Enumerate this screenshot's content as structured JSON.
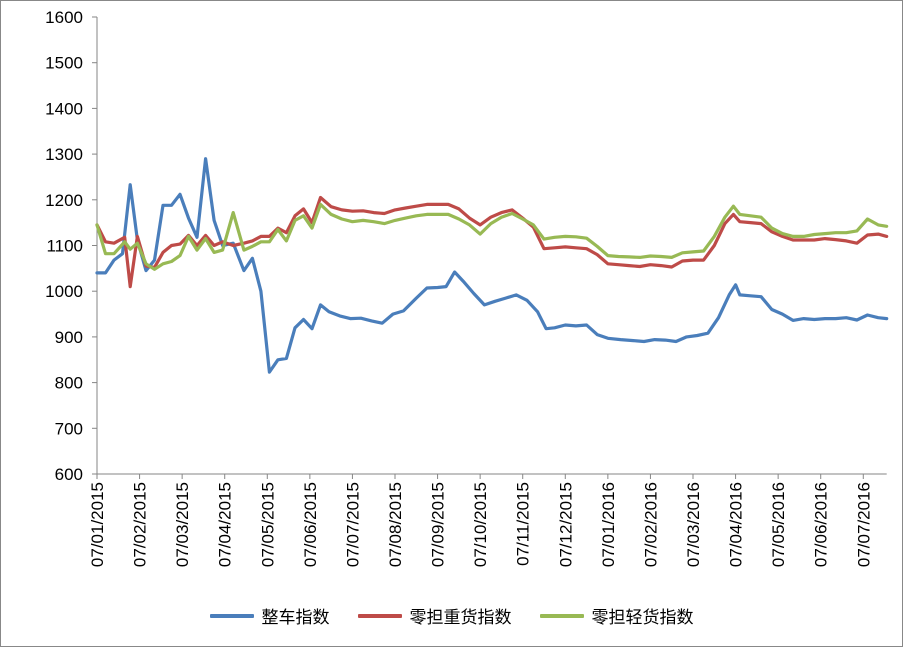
{
  "chart_data": {
    "type": "line",
    "ylim": [
      600,
      1600
    ],
    "yticks": [
      600,
      700,
      800,
      900,
      1000,
      1100,
      1200,
      1300,
      1400,
      1500,
      1600
    ],
    "x_tick_labels": [
      "07/01/2015",
      "07/02/2015",
      "07/03/2015",
      "07/04/2015",
      "07/05/2015",
      "07/06/2015",
      "07/07/2015",
      "07/08/2015",
      "07/09/2015",
      "07/10/2015",
      "07/11/2015",
      "07/12/2015",
      "07/01/2016",
      "07/02/2016",
      "07/03/2016",
      "07/04/2016",
      "07/05/2016",
      "07/06/2016",
      "07/07/2016"
    ],
    "x_months": [
      0,
      1,
      2,
      3,
      4,
      5,
      6,
      7,
      8,
      9,
      10,
      11,
      12,
      13,
      14,
      15,
      16,
      17,
      18
    ],
    "x_end": 18.55,
    "grid": false,
    "legend_position": "bottom",
    "series": [
      {
        "name": "整车指数",
        "color": "#4a7ebb",
        "points": [
          [
            0.0,
            1040
          ],
          [
            0.2,
            1040
          ],
          [
            0.4,
            1068
          ],
          [
            0.6,
            1082
          ],
          [
            0.78,
            1233
          ],
          [
            0.95,
            1112
          ],
          [
            1.15,
            1045
          ],
          [
            1.35,
            1068
          ],
          [
            1.55,
            1188
          ],
          [
            1.75,
            1188
          ],
          [
            1.95,
            1212
          ],
          [
            2.15,
            1160
          ],
          [
            2.35,
            1118
          ],
          [
            2.55,
            1290
          ],
          [
            2.75,
            1155
          ],
          [
            2.95,
            1100
          ],
          [
            3.2,
            1105
          ],
          [
            3.45,
            1045
          ],
          [
            3.65,
            1072
          ],
          [
            3.85,
            1000
          ],
          [
            4.05,
            823
          ],
          [
            4.25,
            850
          ],
          [
            4.45,
            853
          ],
          [
            4.65,
            920
          ],
          [
            4.85,
            938
          ],
          [
            5.05,
            918
          ],
          [
            5.25,
            970
          ],
          [
            5.45,
            955
          ],
          [
            5.7,
            946
          ],
          [
            5.95,
            940
          ],
          [
            6.2,
            941
          ],
          [
            6.45,
            935
          ],
          [
            6.7,
            930
          ],
          [
            6.95,
            950
          ],
          [
            7.2,
            957
          ],
          [
            7.5,
            985
          ],
          [
            7.75,
            1007
          ],
          [
            8.0,
            1008
          ],
          [
            8.2,
            1010
          ],
          [
            8.4,
            1042
          ],
          [
            8.6,
            1022
          ],
          [
            8.85,
            995
          ],
          [
            9.1,
            970
          ],
          [
            9.35,
            978
          ],
          [
            9.6,
            985
          ],
          [
            9.85,
            992
          ],
          [
            10.1,
            980
          ],
          [
            10.35,
            955
          ],
          [
            10.55,
            918
          ],
          [
            10.75,
            920
          ],
          [
            11.0,
            926
          ],
          [
            11.25,
            924
          ],
          [
            11.5,
            926
          ],
          [
            11.75,
            905
          ],
          [
            12.0,
            897
          ],
          [
            12.3,
            894
          ],
          [
            12.6,
            892
          ],
          [
            12.85,
            890
          ],
          [
            13.1,
            894
          ],
          [
            13.35,
            893
          ],
          [
            13.6,
            890
          ],
          [
            13.85,
            900
          ],
          [
            14.1,
            903
          ],
          [
            14.35,
            908
          ],
          [
            14.6,
            942
          ],
          [
            14.85,
            992
          ],
          [
            15.0,
            1014
          ],
          [
            15.1,
            992
          ],
          [
            15.35,
            990
          ],
          [
            15.6,
            988
          ],
          [
            15.85,
            960
          ],
          [
            16.1,
            950
          ],
          [
            16.35,
            936
          ],
          [
            16.6,
            940
          ],
          [
            16.85,
            938
          ],
          [
            17.1,
            940
          ],
          [
            17.35,
            940
          ],
          [
            17.6,
            942
          ],
          [
            17.85,
            937
          ],
          [
            18.1,
            948
          ],
          [
            18.35,
            942
          ],
          [
            18.55,
            940
          ]
        ]
      },
      {
        "name": "零担重货指数",
        "color": "#be4b48",
        "points": [
          [
            0.0,
            1145
          ],
          [
            0.2,
            1108
          ],
          [
            0.4,
            1105
          ],
          [
            0.65,
            1118
          ],
          [
            0.78,
            1010
          ],
          [
            0.95,
            1120
          ],
          [
            1.15,
            1055
          ],
          [
            1.35,
            1052
          ],
          [
            1.55,
            1085
          ],
          [
            1.75,
            1100
          ],
          [
            1.95,
            1103
          ],
          [
            2.15,
            1122
          ],
          [
            2.35,
            1100
          ],
          [
            2.55,
            1122
          ],
          [
            2.75,
            1100
          ],
          [
            2.95,
            1108
          ],
          [
            3.2,
            1100
          ],
          [
            3.45,
            1105
          ],
          [
            3.65,
            1110
          ],
          [
            3.85,
            1120
          ],
          [
            4.05,
            1120
          ],
          [
            4.25,
            1138
          ],
          [
            4.45,
            1128
          ],
          [
            4.65,
            1165
          ],
          [
            4.85,
            1180
          ],
          [
            5.05,
            1150
          ],
          [
            5.25,
            1205
          ],
          [
            5.5,
            1185
          ],
          [
            5.75,
            1178
          ],
          [
            6.0,
            1175
          ],
          [
            6.25,
            1176
          ],
          [
            6.5,
            1172
          ],
          [
            6.75,
            1170
          ],
          [
            7.0,
            1178
          ],
          [
            7.25,
            1182
          ],
          [
            7.5,
            1186
          ],
          [
            7.75,
            1190
          ],
          [
            8.0,
            1190
          ],
          [
            8.25,
            1190
          ],
          [
            8.5,
            1180
          ],
          [
            8.75,
            1160
          ],
          [
            9.0,
            1145
          ],
          [
            9.25,
            1162
          ],
          [
            9.5,
            1172
          ],
          [
            9.75,
            1178
          ],
          [
            10.0,
            1160
          ],
          [
            10.25,
            1140
          ],
          [
            10.5,
            1093
          ],
          [
            10.75,
            1095
          ],
          [
            11.0,
            1097
          ],
          [
            11.25,
            1095
          ],
          [
            11.5,
            1093
          ],
          [
            11.75,
            1080
          ],
          [
            12.0,
            1060
          ],
          [
            12.25,
            1058
          ],
          [
            12.5,
            1056
          ],
          [
            12.75,
            1054
          ],
          [
            13.0,
            1058
          ],
          [
            13.25,
            1056
          ],
          [
            13.5,
            1053
          ],
          [
            13.75,
            1066
          ],
          [
            14.0,
            1068
          ],
          [
            14.25,
            1068
          ],
          [
            14.5,
            1100
          ],
          [
            14.75,
            1148
          ],
          [
            14.95,
            1168
          ],
          [
            15.1,
            1152
          ],
          [
            15.35,
            1150
          ],
          [
            15.6,
            1148
          ],
          [
            15.85,
            1130
          ],
          [
            16.1,
            1120
          ],
          [
            16.35,
            1112
          ],
          [
            16.6,
            1112
          ],
          [
            16.85,
            1112
          ],
          [
            17.1,
            1115
          ],
          [
            17.35,
            1113
          ],
          [
            17.6,
            1110
          ],
          [
            17.85,
            1105
          ],
          [
            18.1,
            1123
          ],
          [
            18.35,
            1125
          ],
          [
            18.55,
            1120
          ]
        ]
      },
      {
        "name": "零担轻货指数",
        "color": "#98b954",
        "points": [
          [
            0.0,
            1145
          ],
          [
            0.2,
            1082
          ],
          [
            0.4,
            1082
          ],
          [
            0.65,
            1108
          ],
          [
            0.78,
            1092
          ],
          [
            0.95,
            1105
          ],
          [
            1.15,
            1060
          ],
          [
            1.35,
            1048
          ],
          [
            1.55,
            1060
          ],
          [
            1.75,
            1065
          ],
          [
            1.95,
            1078
          ],
          [
            2.15,
            1120
          ],
          [
            2.35,
            1090
          ],
          [
            2.55,
            1115
          ],
          [
            2.75,
            1085
          ],
          [
            2.95,
            1090
          ],
          [
            3.2,
            1172
          ],
          [
            3.45,
            1090
          ],
          [
            3.65,
            1098
          ],
          [
            3.85,
            1108
          ],
          [
            4.05,
            1108
          ],
          [
            4.25,
            1135
          ],
          [
            4.45,
            1110
          ],
          [
            4.65,
            1155
          ],
          [
            4.85,
            1165
          ],
          [
            5.05,
            1138
          ],
          [
            5.25,
            1190
          ],
          [
            5.5,
            1168
          ],
          [
            5.75,
            1158
          ],
          [
            6.0,
            1152
          ],
          [
            6.25,
            1155
          ],
          [
            6.5,
            1152
          ],
          [
            6.75,
            1148
          ],
          [
            7.0,
            1155
          ],
          [
            7.25,
            1160
          ],
          [
            7.5,
            1165
          ],
          [
            7.75,
            1168
          ],
          [
            8.0,
            1168
          ],
          [
            8.25,
            1168
          ],
          [
            8.5,
            1158
          ],
          [
            8.75,
            1145
          ],
          [
            9.0,
            1125
          ],
          [
            9.25,
            1148
          ],
          [
            9.5,
            1162
          ],
          [
            9.75,
            1170
          ],
          [
            10.0,
            1158
          ],
          [
            10.25,
            1145
          ],
          [
            10.5,
            1114
          ],
          [
            10.75,
            1118
          ],
          [
            11.0,
            1120
          ],
          [
            11.25,
            1119
          ],
          [
            11.5,
            1116
          ],
          [
            11.75,
            1098
          ],
          [
            12.0,
            1078
          ],
          [
            12.25,
            1076
          ],
          [
            12.5,
            1075
          ],
          [
            12.75,
            1074
          ],
          [
            13.0,
            1077
          ],
          [
            13.25,
            1076
          ],
          [
            13.5,
            1074
          ],
          [
            13.75,
            1084
          ],
          [
            14.0,
            1086
          ],
          [
            14.25,
            1088
          ],
          [
            14.5,
            1120
          ],
          [
            14.75,
            1162
          ],
          [
            14.95,
            1186
          ],
          [
            15.1,
            1168
          ],
          [
            15.35,
            1165
          ],
          [
            15.6,
            1162
          ],
          [
            15.85,
            1138
          ],
          [
            16.1,
            1126
          ],
          [
            16.35,
            1120
          ],
          [
            16.6,
            1120
          ],
          [
            16.85,
            1124
          ],
          [
            17.1,
            1126
          ],
          [
            17.35,
            1128
          ],
          [
            17.6,
            1128
          ],
          [
            17.85,
            1132
          ],
          [
            18.1,
            1158
          ],
          [
            18.35,
            1145
          ],
          [
            18.55,
            1142
          ]
        ]
      }
    ]
  }
}
